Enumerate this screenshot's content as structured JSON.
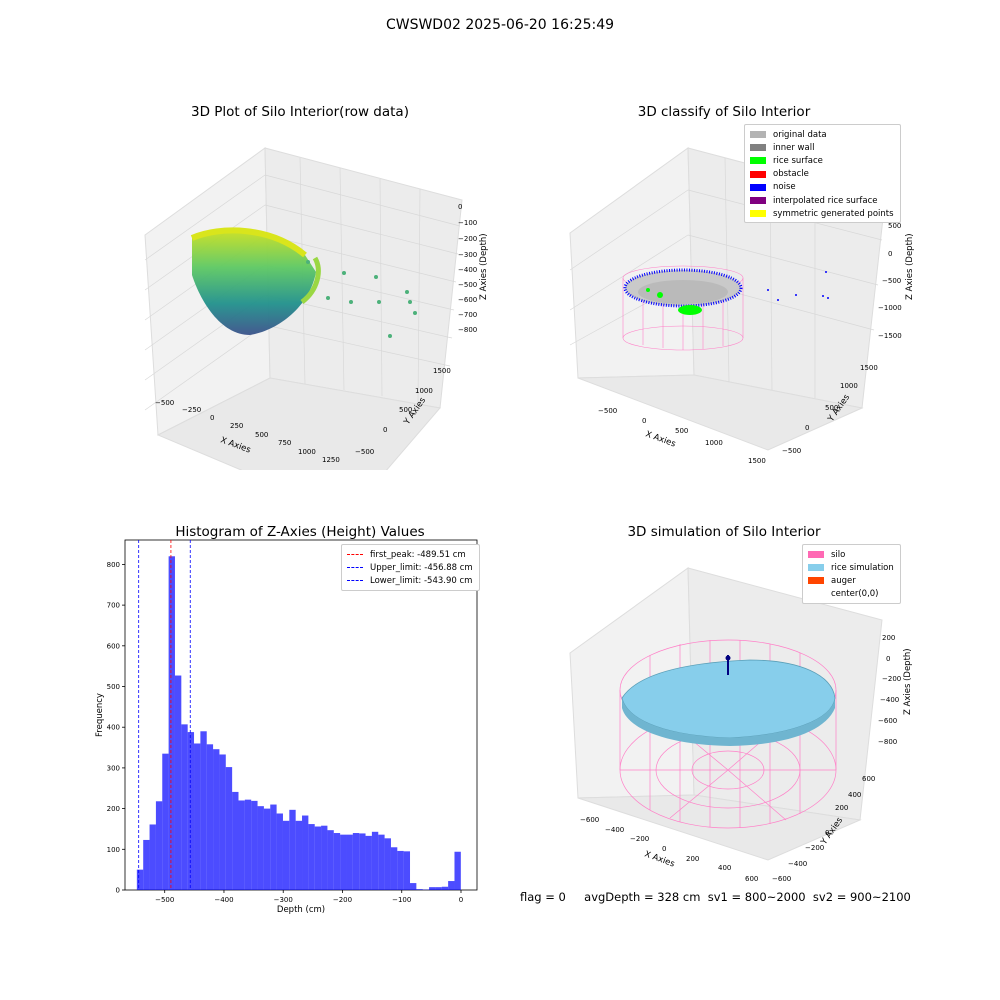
{
  "suptitle": "CWSWD02 2025-06-20 16:25:49",
  "panels": {
    "raw": {
      "title": "3D Plot of Silo Interior(row data)",
      "xlabel": "X Axies",
      "ylabel": "Y Axies",
      "zlabel": "Z Axies (Depth)",
      "xticks": [
        "−500",
        "−250",
        "0",
        "250",
        "500",
        "750",
        "1000",
        "1250"
      ],
      "yticks": [
        "−500",
        "0",
        "500",
        "1000",
        "1500"
      ],
      "zticks": [
        "0",
        "−100",
        "−200",
        "−300",
        "−400",
        "−500",
        "−600",
        "−700",
        "−800"
      ]
    },
    "classify": {
      "title": "3D classify of Silo Interior",
      "xlabel": "X Axies",
      "ylabel": "Y Axies",
      "zlabel": "Z Axies (Depth)",
      "xticks": [
        "−500",
        "0",
        "500",
        "1000",
        "1500"
      ],
      "yticks": [
        "−500",
        "0",
        "500",
        "1000",
        "1500"
      ],
      "zticks": [
        "500",
        "0",
        "−500",
        "−1000",
        "−1500"
      ],
      "legend": [
        {
          "label": "original data",
          "color": "#b3b3b3"
        },
        {
          "label": "inner wall",
          "color": "#808080"
        },
        {
          "label": "rice surface",
          "color": "#00ff00"
        },
        {
          "label": "obstacle",
          "color": "#ff0000"
        },
        {
          "label": "noise",
          "color": "#0000ff"
        },
        {
          "label": "interpolated rice surface",
          "color": "#800080"
        },
        {
          "label": "symmetric generated points",
          "color": "#ffff00"
        }
      ]
    },
    "simulation": {
      "title": "3D simulation of Silo Interior",
      "xlabel": "X Axies",
      "ylabel": "Y Axies",
      "zlabel": "Z Axies (Depth)",
      "xticks": [
        "−600",
        "−400",
        "−200",
        "0",
        "200",
        "400",
        "600"
      ],
      "yticks": [
        "−600",
        "−400",
        "−200",
        "0",
        "200",
        "400",
        "600"
      ],
      "zticks": [
        "200",
        "0",
        "−200",
        "−400",
        "−600",
        "−800"
      ],
      "legend": [
        {
          "label": "silo",
          "color": "#ff69b4"
        },
        {
          "label": "rice simulation",
          "color": "#87ceeb"
        },
        {
          "label": "auger",
          "color": "#ff4500"
        },
        {
          "label": "center(0,0)",
          "color": "#ffffff"
        }
      ]
    }
  },
  "chart_data": {
    "type": "bar",
    "title": "Histogram of Z-Axies (Height) Values",
    "xlabel": "Depth (cm)",
    "ylabel": "Frequency",
    "xlim": [
      -567,
      27
    ],
    "ylim": [
      0,
      860
    ],
    "xticks": [
      -500,
      -400,
      -300,
      -200,
      -100,
      0
    ],
    "yticks": [
      0,
      100,
      200,
      300,
      400,
      500,
      600,
      700,
      800
    ],
    "bin_start": -547,
    "bin_width": 10.72,
    "values": [
      50,
      123,
      161,
      218,
      335,
      820,
      527,
      407,
      388,
      360,
      390,
      358,
      346,
      333,
      302,
      241,
      220,
      222,
      219,
      206,
      200,
      210,
      188,
      170,
      197,
      170,
      183,
      162,
      156,
      158,
      147,
      140,
      136,
      136,
      140,
      139,
      133,
      143,
      136,
      127,
      105,
      96,
      95,
      17,
      2,
      1,
      7,
      7,
      8,
      22,
      94
    ],
    "bar_color": "#0000ff",
    "vlines": [
      {
        "label": "first_peak: -489.51 cm",
        "x": -489.51,
        "color": "#ff0000"
      },
      {
        "label": "Upper_limit: -456.88 cm",
        "x": -456.88,
        "color": "#0000ff"
      },
      {
        "label": "Lower_limit: -543.90 cm",
        "x": -543.9,
        "color": "#0000ff"
      }
    ]
  },
  "stats": {
    "flag": "flag = 0",
    "avg": "avgDepth = 328 cm  sv1 = 800~2000  sv2 = 900~2100"
  }
}
